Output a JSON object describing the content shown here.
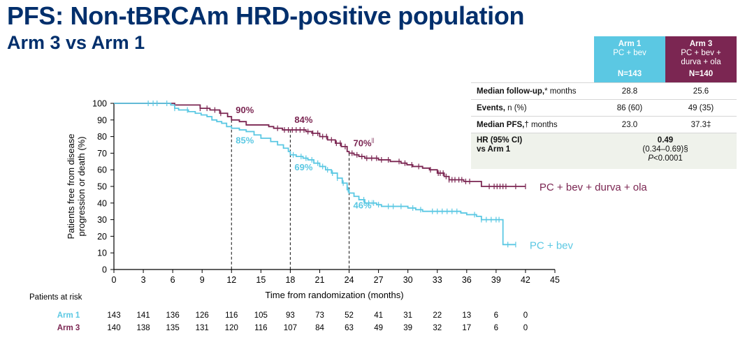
{
  "header": {
    "title": "PFS: Non-tBRCAm HRD-positive population",
    "subtitle": "Arm 3 vs Arm 1"
  },
  "summary_table": {
    "arm1": {
      "name": "Arm 1",
      "regimen": "PC + bev",
      "n": "N=143",
      "color": "#5BC8E3"
    },
    "arm3": {
      "name": "Arm 3",
      "regimen_line1": "PC + bev +",
      "regimen_line2": "durva + ola",
      "n": "N=140",
      "color": "#7B2652"
    },
    "rows": [
      {
        "label_bold": "Median follow-up,",
        "label_rest": "* months",
        "arm1": "28.8",
        "arm3": "25.6"
      },
      {
        "label_bold": "Events,",
        "label_rest": " n (%)",
        "arm1": "86 (60)",
        "arm3": "49 (35)"
      },
      {
        "label_bold": "Median PFS,",
        "label_rest": "† months",
        "arm1": "23.0",
        "arm3": "37.3‡"
      }
    ],
    "hr": {
      "label_line1": "HR (95% CI)",
      "label_line2": "vs Arm 1",
      "value": "0.49",
      "ci": "(0.34–0.69)§",
      "p_prefix": "P",
      "p_rest": "<0.0001"
    }
  },
  "chart_data": {
    "type": "line",
    "title": "",
    "xlabel": "Time from randomization (months)",
    "ylabel_line1": "Patients free from disease",
    "ylabel_line2": "progression or death (%)",
    "xlim": [
      0,
      45
    ],
    "ylim": [
      0,
      100
    ],
    "xticks": [
      0,
      3,
      6,
      9,
      12,
      15,
      18,
      21,
      24,
      27,
      30,
      33,
      36,
      39,
      42,
      45
    ],
    "yticks": [
      0,
      10,
      20,
      30,
      40,
      50,
      60,
      70,
      80,
      90,
      100
    ],
    "reference_lines_x": [
      12,
      18,
      24
    ],
    "series": [
      {
        "name": "PC + bev + durva + ola",
        "arm": "Arm 3",
        "color": "#7B2652",
        "steps": [
          [
            0,
            100
          ],
          [
            5.5,
            100
          ],
          [
            6.2,
            99
          ],
          [
            8.8,
            97
          ],
          [
            9.8,
            96
          ],
          [
            10.8,
            94
          ],
          [
            11.6,
            92
          ],
          [
            12,
            90
          ],
          [
            12.8,
            89
          ],
          [
            13.5,
            87
          ],
          [
            15.8,
            86
          ],
          [
            16.3,
            85
          ],
          [
            17.2,
            84
          ],
          [
            18,
            84
          ],
          [
            19.6,
            83
          ],
          [
            20.2,
            82
          ],
          [
            21,
            80
          ],
          [
            21.8,
            78
          ],
          [
            22.6,
            76
          ],
          [
            23.2,
            74
          ],
          [
            23.8,
            71
          ],
          [
            24,
            70
          ],
          [
            24.5,
            69
          ],
          [
            25,
            68
          ],
          [
            25.6,
            67
          ],
          [
            27,
            66
          ],
          [
            28.2,
            65
          ],
          [
            29.3,
            64
          ],
          [
            29.9,
            63
          ],
          [
            30.5,
            62
          ],
          [
            31.5,
            61
          ],
          [
            32.2,
            60
          ],
          [
            33,
            58
          ],
          [
            33.7,
            56
          ],
          [
            34.2,
            54
          ],
          [
            35,
            54
          ],
          [
            35.7,
            53
          ],
          [
            37.5,
            50
          ],
          [
            42,
            50
          ]
        ],
        "censors": [
          8.8,
          9.5,
          10.3,
          10.9,
          16.7,
          17.4,
          17.8,
          18.2,
          18.6,
          19,
          19.4,
          19.8,
          20.3,
          20.8,
          21.3,
          21.7,
          22.2,
          22.7,
          23.1,
          23.6,
          24.3,
          24.8,
          25.3,
          25.8,
          26.3,
          26.8,
          27.3,
          28,
          29.1,
          29.7,
          30.4,
          31.1,
          32.3,
          33.1,
          33.3,
          33.6,
          33.9,
          34.2,
          34.5,
          34.8,
          35.2,
          35.5,
          35.9,
          36.3,
          38.3,
          38.8,
          39.1,
          39.4,
          39.7,
          40,
          41,
          42
        ],
        "landmarks": [
          {
            "x": 12,
            "label": "90%"
          },
          {
            "x": 18,
            "label": "84%"
          },
          {
            "x": 24,
            "label": "70%",
            "sup": "||"
          }
        ],
        "end_label": "PC + bev + durva + ola"
      },
      {
        "name": "PC + bev",
        "arm": "Arm 1",
        "color": "#5BC8E3",
        "steps": [
          [
            0,
            100
          ],
          [
            5,
            100
          ],
          [
            5.8,
            99
          ],
          [
            6.2,
            97
          ],
          [
            6.6,
            96
          ],
          [
            7.6,
            95
          ],
          [
            8.3,
            94
          ],
          [
            8.9,
            93
          ],
          [
            9.5,
            92
          ],
          [
            10,
            90
          ],
          [
            10.5,
            89
          ],
          [
            11,
            88
          ],
          [
            11.5,
            86
          ],
          [
            12,
            85
          ],
          [
            12.8,
            84
          ],
          [
            13.5,
            83
          ],
          [
            14.3,
            81
          ],
          [
            15,
            79
          ],
          [
            16,
            77
          ],
          [
            16.7,
            75
          ],
          [
            17.3,
            73
          ],
          [
            17.8,
            71
          ],
          [
            18,
            69
          ],
          [
            18.6,
            68
          ],
          [
            19.3,
            67
          ],
          [
            19.8,
            66
          ],
          [
            20.4,
            64
          ],
          [
            21,
            62
          ],
          [
            21.6,
            60
          ],
          [
            22.2,
            58
          ],
          [
            22.8,
            55
          ],
          [
            23.3,
            52
          ],
          [
            23.8,
            48
          ],
          [
            24,
            46
          ],
          [
            24.5,
            44
          ],
          [
            25,
            42
          ],
          [
            25.6,
            40
          ],
          [
            26.8,
            39
          ],
          [
            27.3,
            38
          ],
          [
            30,
            37
          ],
          [
            30.8,
            36
          ],
          [
            31.5,
            35
          ],
          [
            35.4,
            34
          ],
          [
            36,
            33
          ],
          [
            37,
            32
          ],
          [
            37.5,
            30
          ],
          [
            39.5,
            30
          ],
          [
            39.7,
            15
          ],
          [
            41,
            15
          ]
        ],
        "censors": [
          3.5,
          4,
          4.4,
          5.4,
          6.2,
          7.5,
          18.3,
          19.1,
          19.6,
          20.2,
          20.8,
          21.3,
          21.8,
          22.3,
          22.8,
          23.4,
          23.9,
          25.5,
          26,
          26.5,
          27,
          28,
          28.5,
          29.3,
          30.5,
          31.3,
          32.5,
          33,
          33.5,
          34,
          34.5,
          35,
          36.8,
          37.5,
          38,
          38.5,
          39,
          39.3,
          40.2,
          41
        ],
        "landmarks": [
          {
            "x": 12,
            "label": "85%"
          },
          {
            "x": 18,
            "label": "69%"
          },
          {
            "x": 24,
            "label": "46%",
            "sup": "||"
          }
        ],
        "end_label": "PC + bev"
      }
    ],
    "at_risk": {
      "title": "Patients at risk",
      "times": [
        0,
        3,
        6,
        9,
        12,
        15,
        18,
        21,
        24,
        27,
        30,
        33,
        36,
        39,
        42
      ],
      "rows": [
        {
          "label": "Arm 1",
          "color": "#5BC8E3",
          "values": [
            143,
            141,
            136,
            126,
            116,
            105,
            93,
            73,
            52,
            41,
            31,
            22,
            13,
            6,
            0
          ]
        },
        {
          "label": "Arm 3",
          "color": "#7B2652",
          "values": [
            140,
            138,
            135,
            131,
            120,
            116,
            107,
            84,
            63,
            49,
            39,
            32,
            17,
            6,
            0
          ]
        }
      ]
    }
  }
}
